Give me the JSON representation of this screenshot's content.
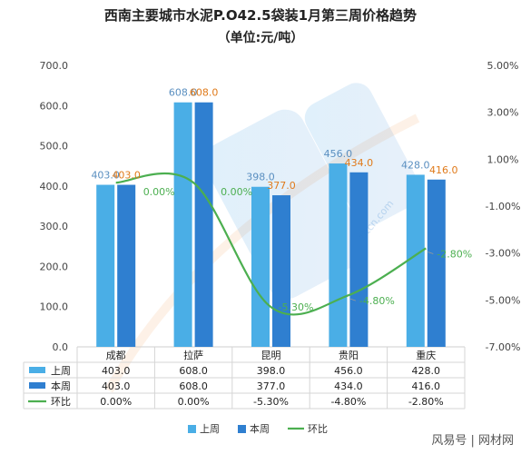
{
  "chart_data": {
    "type": "bar",
    "title": "西南主要城市水泥P.O42.5袋装1月第三周价格趋势",
    "subtitle": "（单位:元/吨）",
    "categories": [
      "成都",
      "拉萨",
      "昆明",
      "贵阳",
      "重庆"
    ],
    "series": [
      {
        "name": "上周",
        "type": "bar",
        "axis": "left",
        "color": "#4aaee6",
        "values": [
          403.0,
          608.0,
          398.0,
          456.0,
          428.0
        ],
        "labels": [
          "403.0",
          "608.0",
          "398.0",
          "456.0",
          "428.0"
        ],
        "label_color": "#5a8fc0"
      },
      {
        "name": "本周",
        "type": "bar",
        "axis": "left",
        "color": "#2f7fd0",
        "values": [
          403.0,
          608.0,
          377.0,
          434.0,
          416.0
        ],
        "labels": [
          "403.0",
          "608.0",
          "377.0",
          "434.0",
          "416.0"
        ],
        "label_color": "#e07a1a"
      },
      {
        "name": "环比",
        "type": "line",
        "axis": "right",
        "color": "#4caf50",
        "values": [
          0.0,
          0.0,
          -5.3,
          -4.8,
          -2.8
        ],
        "labels": [
          "0.00%",
          "0.00%",
          "-5.30%",
          "-4.80%",
          "-2.80%"
        ],
        "label_color": "#4caf50"
      }
    ],
    "ylim": [
      0,
      700
    ],
    "yticks": [
      "0.0",
      "100.0",
      "200.0",
      "300.0",
      "400.0",
      "500.0",
      "600.0",
      "700.0"
    ],
    "y2lim": [
      -7,
      5
    ],
    "y2ticks": [
      "-7.00%",
      "-5.00%",
      "-3.00%",
      "-1.00%",
      "1.00%",
      "3.00%",
      "5.00%"
    ],
    "table": {
      "rows": [
        {
          "name": "上周",
          "cells": [
            "403.0",
            "608.0",
            "398.0",
            "456.0",
            "428.0"
          ]
        },
        {
          "name": "本周",
          "cells": [
            "403.0",
            "608.0",
            "377.0",
            "434.0",
            "416.0"
          ]
        },
        {
          "name": "环比",
          "cells": [
            "0.00%",
            "0.00%",
            "-5.30%",
            "-4.80%",
            "-2.80%"
          ]
        }
      ]
    },
    "legend": {
      "position": "bottom",
      "items": [
        "上周",
        "本周",
        "环比"
      ]
    },
    "grid": false
  },
  "watermark": {
    "text": "zitcn.com",
    "label": "风易号 | 网材网"
  }
}
